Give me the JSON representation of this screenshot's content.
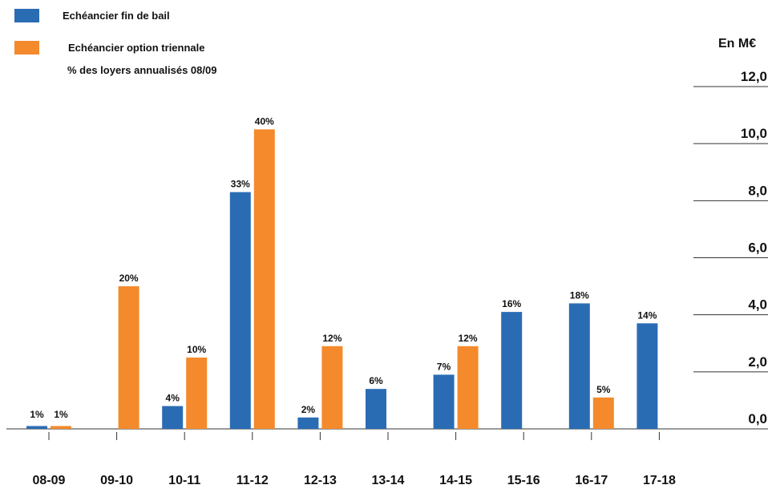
{
  "legend": {
    "series1_label": "Echéancier fin de bail",
    "series2_label": "Echéancier option triennale",
    "note": "% des loyers annualisés 08/09"
  },
  "unit_label": "En M€",
  "colors": {
    "series1": "#2a6cb4",
    "series2": "#f48a2c",
    "axis": "#333333",
    "text": "#111111"
  },
  "chart_data": {
    "type": "bar",
    "categories": [
      "08-09",
      "09-10",
      "10-11",
      "11-12",
      "12-13",
      "13-14",
      "14-15",
      "15-16",
      "16-17",
      "17-18"
    ],
    "series": [
      {
        "name": "Echéancier fin de bail",
        "values": [
          0.1,
          0,
          0.8,
          8.3,
          0.4,
          1.4,
          1.9,
          4.1,
          4.4,
          3.7
        ],
        "labels": [
          "1%",
          "",
          "4%",
          "33%",
          "2%",
          "6%",
          "7%",
          "16%",
          "18%",
          "14%"
        ]
      },
      {
        "name": "Echéancier option triennale",
        "values": [
          0.1,
          5.0,
          2.5,
          10.5,
          2.9,
          0,
          2.9,
          0,
          1.1,
          0
        ],
        "labels": [
          "1%",
          "20%",
          "10%",
          "40%",
          "12%",
          "",
          "12%",
          "",
          "5%",
          ""
        ]
      }
    ],
    "ylabel": "En M€",
    "ylim": [
      0,
      12
    ],
    "yticks": [
      0,
      2,
      4,
      6,
      8,
      10,
      12
    ],
    "ytick_labels": [
      "0,0",
      "2,0",
      "4,0",
      "6,0",
      "8,0",
      "10,0",
      "12,0"
    ],
    "legend": "top-left",
    "yaxis_position": "right",
    "grid": false
  }
}
